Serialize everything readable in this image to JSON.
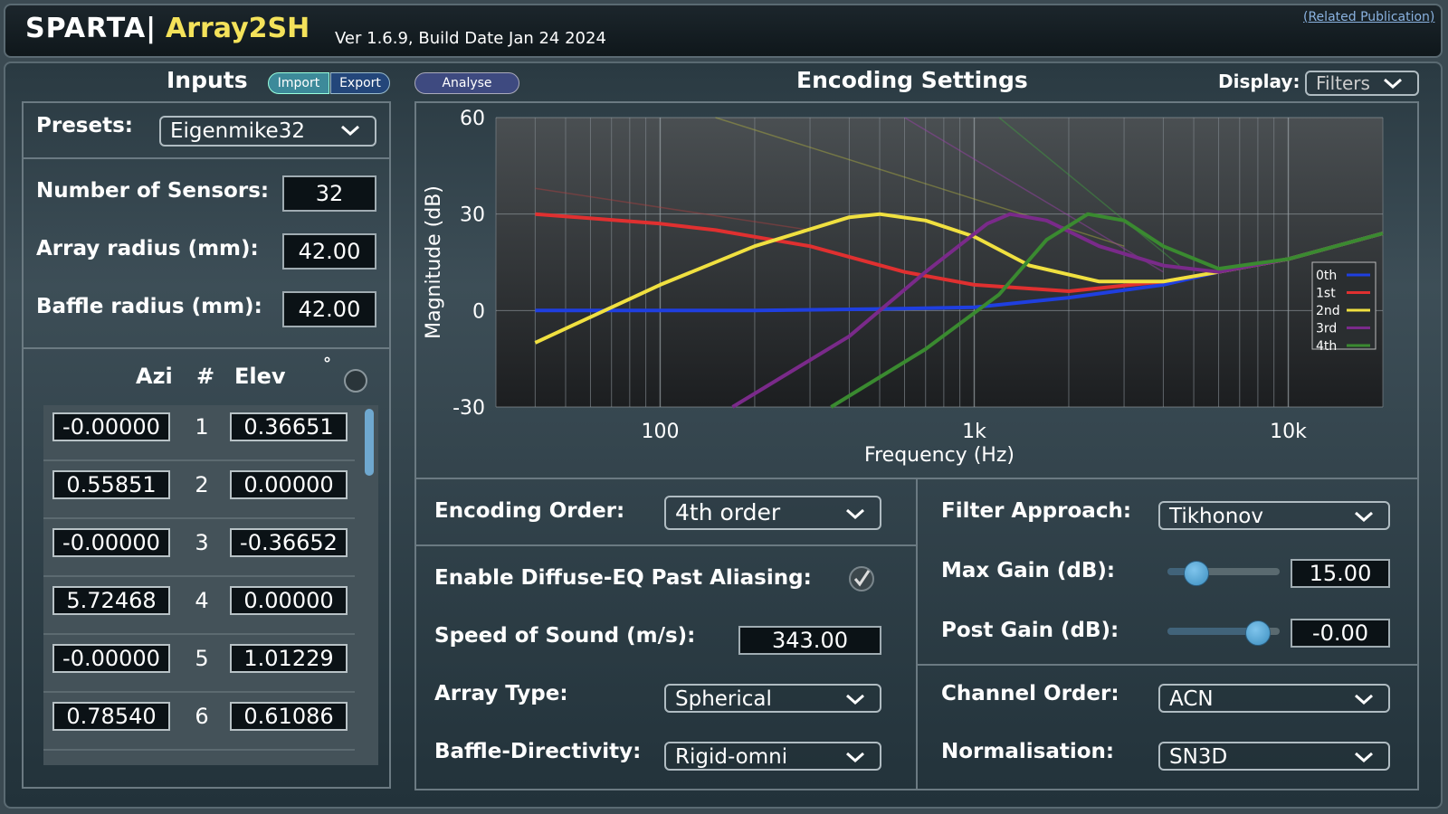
{
  "header": {
    "title_part1": "SPARTA|",
    "title_part2": "Array2SH",
    "version": "Ver 1.6.9, Build Date Jan 24 2024",
    "publication_link": "(Related Publication)"
  },
  "inputs": {
    "heading": "Inputs",
    "import_label": "Import",
    "export_label": "Export",
    "presets_label": "Presets:",
    "preset_value": "Eigenmike32",
    "num_sensors_label": "Number of Sensors:",
    "num_sensors_value": "32",
    "array_radius_label": "Array radius (mm):",
    "array_radius_value": "42.00",
    "baffle_radius_label": "Baffle radius (mm):",
    "baffle_radius_value": "42.00",
    "azi_header": "Azi",
    "index_header": "#",
    "elev_header": "Elev",
    "degree_symbol": "°",
    "sensors": [
      {
        "azi": "-0.00000",
        "idx": "1",
        "elev": "0.36651"
      },
      {
        "azi": "0.55851",
        "idx": "2",
        "elev": "0.00000"
      },
      {
        "azi": "-0.00000",
        "idx": "3",
        "elev": "-0.36652"
      },
      {
        "azi": "5.72468",
        "idx": "4",
        "elev": "0.00000"
      },
      {
        "azi": "-0.00000",
        "idx": "5",
        "elev": "1.01229"
      },
      {
        "azi": "0.78540",
        "idx": "6",
        "elev": "0.61086"
      }
    ]
  },
  "encoding": {
    "analyse_label": "Analyse",
    "heading": "Encoding Settings",
    "display_label": "Display:",
    "display_value": "Filters",
    "order_label": "Encoding Order:",
    "order_value": "4th order",
    "diffuse_eq_label": "Enable Diffuse-EQ Past Aliasing:",
    "diffuse_eq_checked": true,
    "speed_label": "Speed of Sound (m/s):",
    "speed_value": "343.00",
    "array_type_label": "Array Type:",
    "array_type_value": "Spherical",
    "baffle_label": "Baffle-Directivity:",
    "baffle_value": "Rigid-omni",
    "filter_label": "Filter Approach:",
    "filter_value": "Tikhonov",
    "max_gain_label": "Max Gain (dB):",
    "max_gain_value": "15.00",
    "max_gain_slider": 0.25,
    "post_gain_label": "Post Gain (dB):",
    "post_gain_value": "-0.00",
    "post_gain_slider": 0.8,
    "channel_order_label": "Channel Order:",
    "channel_order_value": "ACN",
    "normalisation_label": "Normalisation:",
    "normalisation_value": "SN3D"
  },
  "chart_data": {
    "type": "line",
    "xlabel": "Frequency (Hz)",
    "ylabel": "Magnitude (dB)",
    "xscale": "log",
    "xlim": [
      30,
      20000
    ],
    "ylim": [
      -30,
      60
    ],
    "xtick_labels": [
      "100",
      "1k",
      "10k"
    ],
    "ytick_labels": [
      "60",
      "30",
      "0",
      "-30"
    ],
    "legend_placement": "right",
    "series": [
      {
        "name": "0th",
        "color": "#1f3fe0",
        "points": [
          [
            40,
            0
          ],
          [
            200,
            0
          ],
          [
            500,
            0.5
          ],
          [
            1000,
            1
          ],
          [
            2000,
            4
          ],
          [
            4000,
            8
          ],
          [
            6000,
            12
          ],
          [
            10000,
            16
          ],
          [
            20000,
            24
          ]
        ]
      },
      {
        "name": "1st",
        "color": "#e03030",
        "points": [
          [
            40,
            30
          ],
          [
            100,
            27
          ],
          [
            150,
            25
          ],
          [
            300,
            20
          ],
          [
            600,
            12
          ],
          [
            1000,
            8
          ],
          [
            2000,
            6
          ],
          [
            4000,
            9
          ],
          [
            6000,
            12
          ],
          [
            10000,
            16
          ],
          [
            20000,
            24
          ]
        ]
      },
      {
        "name": "2nd",
        "color": "#f0e040",
        "points": [
          [
            40,
            -10
          ],
          [
            100,
            8
          ],
          [
            200,
            20
          ],
          [
            400,
            29
          ],
          [
            500,
            30
          ],
          [
            700,
            28
          ],
          [
            1000,
            23
          ],
          [
            1500,
            14
          ],
          [
            2500,
            9
          ],
          [
            4000,
            9
          ],
          [
            6000,
            12
          ],
          [
            10000,
            16
          ],
          [
            20000,
            24
          ]
        ]
      },
      {
        "name": "3rd",
        "color": "#7a2a8a",
        "points": [
          [
            170,
            -30
          ],
          [
            400,
            -8
          ],
          [
            700,
            12
          ],
          [
            1100,
            27
          ],
          [
            1300,
            30
          ],
          [
            1700,
            28
          ],
          [
            2500,
            20
          ],
          [
            4000,
            14
          ],
          [
            6000,
            12
          ],
          [
            10000,
            16
          ],
          [
            20000,
            24
          ]
        ]
      },
      {
        "name": "4th",
        "color": "#3a8a30",
        "points": [
          [
            350,
            -30
          ],
          [
            700,
            -12
          ],
          [
            1200,
            5
          ],
          [
            1700,
            22
          ],
          [
            2300,
            30
          ],
          [
            3000,
            28
          ],
          [
            4000,
            20
          ],
          [
            6000,
            13
          ],
          [
            10000,
            16
          ],
          [
            20000,
            24
          ]
        ]
      }
    ]
  }
}
